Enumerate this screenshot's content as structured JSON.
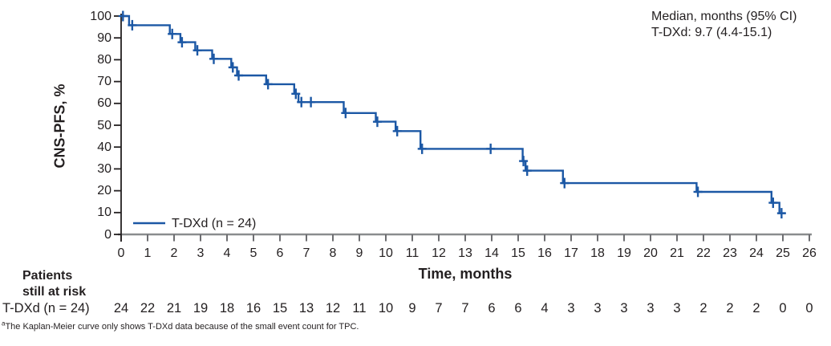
{
  "annotation": {
    "line1": "Median, months (95% CI)",
    "line2": "T-DXd: 9.7 (4.4-15.1)"
  },
  "legend": {
    "label": "T-DXd (n = 24)"
  },
  "risk_table": {
    "header_line1": "Patients",
    "header_line2": "still at risk",
    "row_label": "T-DXd (n = 24)",
    "values": [
      24,
      22,
      21,
      19,
      18,
      16,
      15,
      13,
      12,
      11,
      10,
      9,
      7,
      7,
      6,
      6,
      4,
      3,
      3,
      3,
      3,
      3,
      2,
      2,
      2,
      0,
      0
    ]
  },
  "footnote": {
    "sup": "a",
    "text": "The Kaplan-Meier curve only shows T-DXd data because of the small event count for TPC."
  },
  "colors": {
    "curve": "#1c58a5",
    "x_axis_line": "#8a8c8e",
    "x_axis_tick": "#6d6e71",
    "y_axis": "#231f20",
    "text": "#231f20"
  },
  "chart_data": {
    "type": "line",
    "subtype": "kaplan_meier_step",
    "title": "",
    "x_axis_label": "Time, months",
    "y_axis_label": "CNS-PFS, %",
    "xlim": [
      0,
      26
    ],
    "ylim": [
      0,
      100
    ],
    "grid": false,
    "legend_position": "lower-left-inside",
    "x_ticks": [
      0,
      1,
      2,
      3,
      4,
      5,
      6,
      7,
      8,
      9,
      10,
      11,
      12,
      13,
      14,
      15,
      16,
      17,
      18,
      19,
      20,
      21,
      22,
      23,
      24,
      25,
      26
    ],
    "y_ticks": [
      0,
      10,
      20,
      30,
      40,
      50,
      60,
      70,
      80,
      90,
      100
    ],
    "series": [
      {
        "name": "T-DXd (n = 24)",
        "n": 24,
        "median_months": 9.7,
        "ci95": "4.4-15.1",
        "color": "#1c58a5",
        "step_points": [
          [
            0,
            100
          ],
          [
            0.3,
            95.8
          ],
          [
            1.84,
            91.8
          ],
          [
            2.24,
            88.0
          ],
          [
            2.8,
            84.3
          ],
          [
            3.44,
            80.4
          ],
          [
            4.16,
            76.5
          ],
          [
            4.38,
            72.8
          ],
          [
            5.48,
            68.8
          ],
          [
            6.54,
            64.4
          ],
          [
            6.7,
            60.6
          ],
          [
            8.41,
            55.6
          ],
          [
            9.62,
            51.6
          ],
          [
            10.37,
            47.3
          ],
          [
            11.31,
            39.2
          ],
          [
            15.17,
            33.6
          ],
          [
            15.28,
            29.2
          ],
          [
            16.69,
            23.5
          ],
          [
            21.74,
            19.5
          ],
          [
            24.57,
            14.5
          ],
          [
            24.87,
            9.7
          ]
        ],
        "end_time": 25.1,
        "censor_marks": [
          [
            0.07,
            100
          ],
          [
            0.42,
            95.8
          ],
          [
            1.93,
            91.8
          ],
          [
            2.3,
            88.0
          ],
          [
            2.88,
            84.3
          ],
          [
            3.5,
            80.4
          ],
          [
            4.22,
            76.5
          ],
          [
            4.44,
            72.8
          ],
          [
            5.55,
            68.8
          ],
          [
            6.6,
            64.4
          ],
          [
            6.81,
            60.6
          ],
          [
            7.17,
            60.6
          ],
          [
            8.48,
            55.6
          ],
          [
            9.68,
            51.6
          ],
          [
            10.43,
            47.3
          ],
          [
            11.37,
            39.2
          ],
          [
            13.96,
            39.2
          ],
          [
            15.2,
            33.6
          ],
          [
            15.34,
            29.2
          ],
          [
            16.75,
            23.5
          ],
          [
            21.79,
            19.5
          ],
          [
            24.63,
            14.5
          ],
          [
            24.95,
            9.7
          ]
        ]
      }
    ],
    "at_risk_values": [
      24,
      22,
      21,
      19,
      18,
      16,
      15,
      13,
      12,
      11,
      10,
      9,
      7,
      7,
      6,
      6,
      4,
      3,
      3,
      3,
      3,
      3,
      2,
      2,
      2,
      0,
      0
    ]
  }
}
